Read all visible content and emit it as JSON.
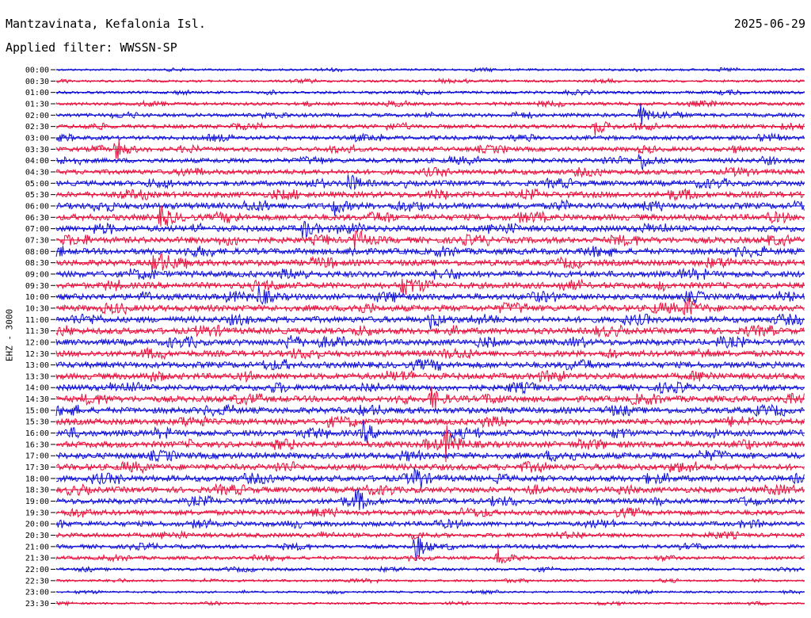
{
  "header": {
    "station": "Mantzavinata, Kefalonia Isl.",
    "date": "2025-06-29",
    "filter": "Applied filter: WWSSN-SP"
  },
  "colors": {
    "blue": "#1010d8",
    "red": "#e8103c"
  },
  "chart_data": {
    "type": "line",
    "title": "Mantzavinata, Kefalonia Isl.",
    "ylabel": "EHZ - 3000",
    "grid": false,
    "trace_colors_alternate": [
      "blue",
      "red"
    ],
    "tick_labels": [
      "00:00",
      "00:30",
      "01:00",
      "01:30",
      "02:00",
      "02:30",
      "03:00",
      "03:30",
      "04:00",
      "04:30",
      "05:00",
      "05:30",
      "06:00",
      "06:30",
      "07:00",
      "07:30",
      "08:00",
      "08:30",
      "09:00",
      "09:30",
      "10:00",
      "10:30",
      "11:00",
      "11:30",
      "12:00",
      "12:30",
      "13:00",
      "13:30",
      "14:00",
      "14:30",
      "15:00",
      "15:30",
      "16:00",
      "16:30",
      "17:00",
      "17:30",
      "18:00",
      "18:30",
      "19:00",
      "19:30",
      "20:00",
      "20:30",
      "21:00",
      "21:30",
      "22:00",
      "22:30",
      "23:00",
      "23:30"
    ],
    "series": [
      {
        "values": [
          0.1,
          0.1,
          0.1,
          0.1,
          0.1,
          0.1,
          0.1,
          0.1,
          0.1,
          0.1,
          0.1,
          0.1,
          0.1,
          0.1,
          0.1,
          0.1,
          0.1,
          0.1,
          0.1,
          0.1,
          0.1,
          0.1,
          0.1,
          0.1
        ]
      },
      {
        "values": [
          0.2,
          0.3,
          0.5,
          0.6,
          0.7,
          0.8,
          1.0,
          1.0,
          1.0,
          1.0,
          1.0,
          1.0,
          1.0,
          1.0,
          1.0,
          1.0,
          1.0,
          1.0,
          1.0,
          0.9,
          0.8,
          0.6,
          0.4,
          0.2
        ]
      }
    ],
    "events": [
      {
        "row": 4,
        "t": 0.78,
        "amp": 1.5
      },
      {
        "row": 5,
        "t": 0.72,
        "amp": 1.3
      },
      {
        "row": 7,
        "t": 0.08,
        "amp": 1.6
      },
      {
        "row": 8,
        "t": 0.78,
        "amp": 1.4
      },
      {
        "row": 10,
        "t": 0.39,
        "amp": 1.4
      },
      {
        "row": 12,
        "t": 0.37,
        "amp": 1.2
      },
      {
        "row": 13,
        "t": 0.14,
        "amp": 1.8
      },
      {
        "row": 14,
        "t": 0.33,
        "amp": 1.3
      },
      {
        "row": 15,
        "t": 0.4,
        "amp": 1.6
      },
      {
        "row": 17,
        "t": 0.13,
        "amp": 1.5
      },
      {
        "row": 19,
        "t": 0.46,
        "amp": 1.2
      },
      {
        "row": 20,
        "t": 0.27,
        "amp": 1.4
      },
      {
        "row": 21,
        "t": 0.84,
        "amp": 1.7
      },
      {
        "row": 22,
        "t": 0.5,
        "amp": 1.2
      },
      {
        "row": 24,
        "t": 0.31,
        "amp": 1.3
      },
      {
        "row": 29,
        "t": 0.5,
        "amp": 1.6
      },
      {
        "row": 32,
        "t": 0.41,
        "amp": 1.5
      },
      {
        "row": 33,
        "t": 0.52,
        "amp": 2.2
      },
      {
        "row": 36,
        "t": 0.48,
        "amp": 1.4
      },
      {
        "row": 38,
        "t": 0.4,
        "amp": 1.3
      },
      {
        "row": 42,
        "t": 0.48,
        "amp": 2.0
      },
      {
        "row": 43,
        "t": 0.59,
        "amp": 1.6
      }
    ]
  }
}
